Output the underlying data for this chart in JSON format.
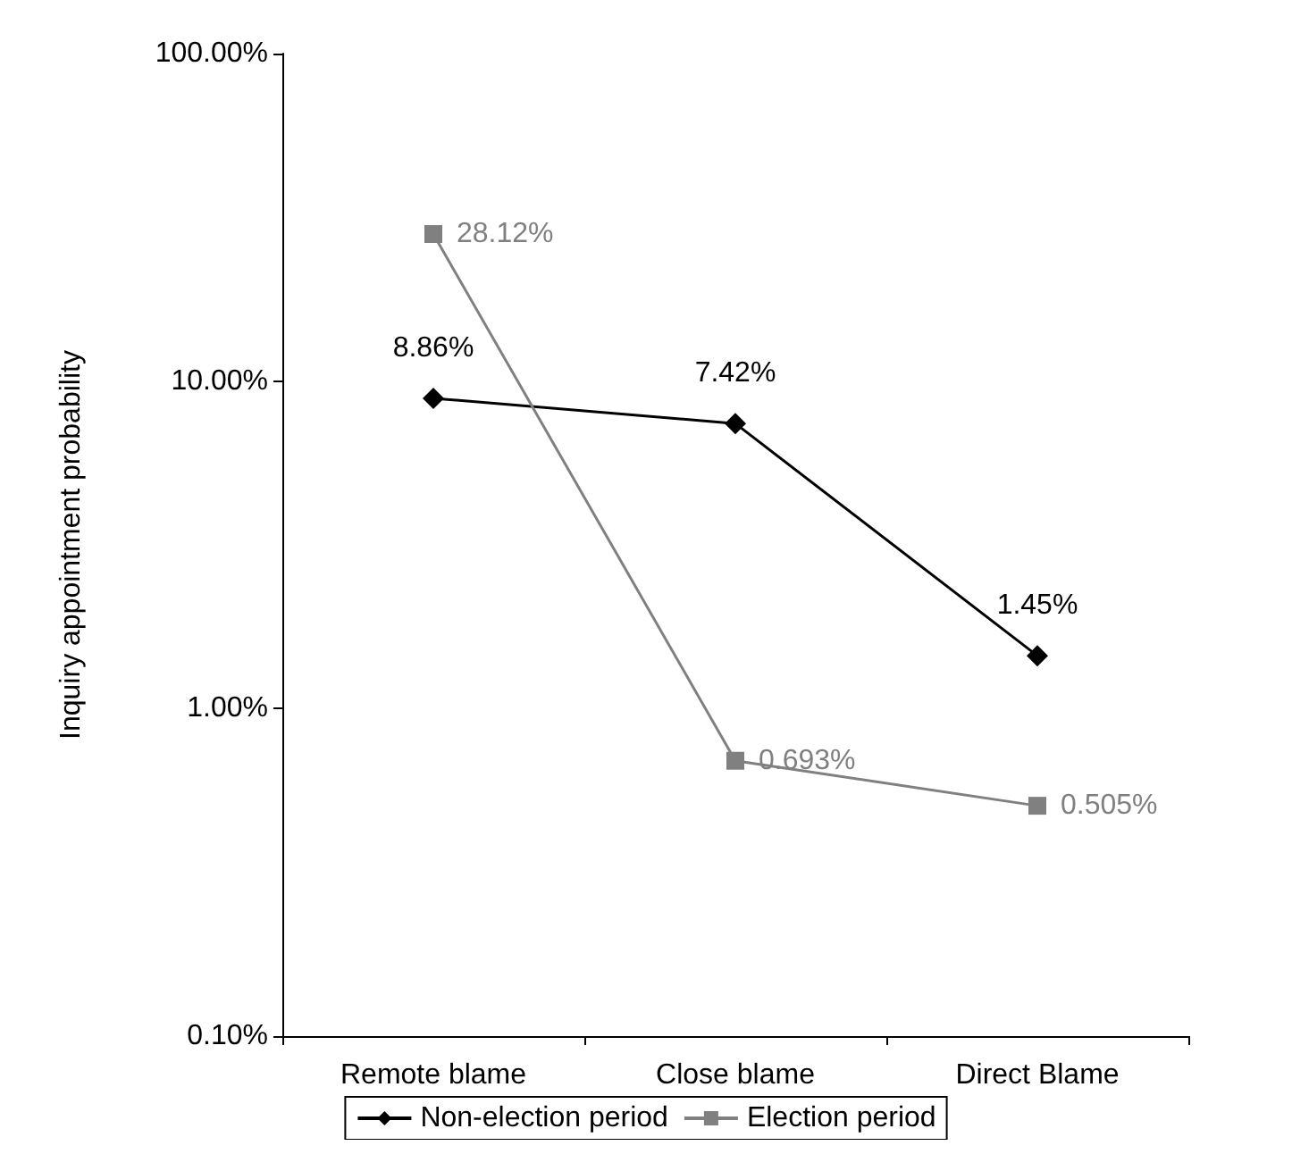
{
  "chart_data": {
    "type": "line",
    "ylabel": "Inquiry appointment probability",
    "categories": [
      "Remote blame",
      "Close blame",
      "Direct Blame"
    ],
    "series": [
      {
        "name": "Non-election period",
        "color": "#000000",
        "marker": "diamond",
        "values": [
          8.86,
          7.42,
          1.45
        ],
        "value_labels": [
          "8.86%",
          "7.42%",
          "1.45%"
        ]
      },
      {
        "name": "Election period",
        "color": "#808080",
        "marker": "square",
        "values": [
          28.12,
          0.693,
          0.505
        ],
        "value_labels": [
          "28.12%",
          "0.693%",
          "0.505%"
        ]
      }
    ],
    "log": "y",
    "ylim": [
      0.1,
      100
    ],
    "yticks": [
      {
        "value": 0.1,
        "label": "0.10%"
      },
      {
        "value": 1,
        "label": "1.00%"
      },
      {
        "value": 10,
        "label": "10.00%"
      },
      {
        "value": 100,
        "label": "100.00%"
      }
    ],
    "grid": false,
    "legend": "bottom"
  }
}
